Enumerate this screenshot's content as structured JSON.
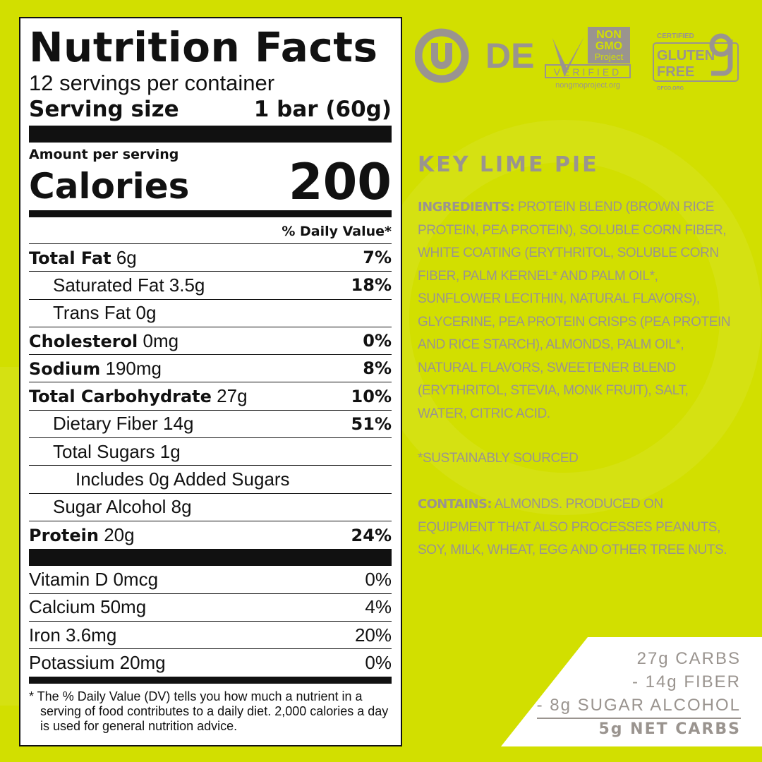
{
  "colors": {
    "background": "#d2df00",
    "text_gray": "#9a948f",
    "label_black": "#111111"
  },
  "label": {
    "title": "Nutrition Facts",
    "servings": "12 servings per container",
    "serving_size_label": "Serving size",
    "serving_size_value": "1 bar (60g)",
    "amount_per_serving": "Amount per serving",
    "calories_label": "Calories",
    "calories_value": "200",
    "dv_header": "% Daily Value*",
    "rows": [
      {
        "name": "Total Fat",
        "amount": "6g",
        "dv": "7%"
      },
      {
        "name": "Saturated Fat 3.5g",
        "dv": "18%"
      },
      {
        "name": "Trans Fat 0g",
        "dv": ""
      },
      {
        "name": "Cholesterol",
        "amount": "0mg",
        "dv": "0%"
      },
      {
        "name": "Sodium",
        "amount": "190mg",
        "dv": "8%"
      },
      {
        "name": "Total Carbohydrate",
        "amount": "27g",
        "dv": "10%"
      },
      {
        "name": "Dietary Fiber 14g",
        "dv": "51%"
      },
      {
        "name": "Total Sugars 1g",
        "dv": ""
      },
      {
        "name": "Includes 0g Added Sugars",
        "dv": ""
      },
      {
        "name": "Sugar Alcohol 8g",
        "dv": ""
      },
      {
        "name": "Protein",
        "amount": "20g",
        "dv": "24%"
      }
    ],
    "vitamins": [
      {
        "name": "Vitamin D 0mcg",
        "dv": "0%"
      },
      {
        "name": "Calcium 50mg",
        "dv": "4%"
      },
      {
        "name": "Iron 3.6mg",
        "dv": "20%"
      },
      {
        "name": "Potassium 20mg",
        "dv": "0%"
      }
    ],
    "footnote": "* The % Daily Value (DV) tells you how much a nutrient in a serving of food contributes to a daily diet. 2,000 calories a day is used for general nutrition advice."
  },
  "logos": {
    "kosher": "DE",
    "nongmo": [
      "NON",
      "GMO",
      "Project",
      "VERIFIED",
      "nongmoproject.org"
    ],
    "gluten": [
      "CERTIFIED",
      "GLUTEN",
      "FREE",
      "GFCO.ORG"
    ]
  },
  "flavor": "KEY LIME PIE",
  "ingredients_label": "INGREDIENTS:",
  "ingredients": " PROTEIN BLEND (BROWN RICE PROTEIN, PEA PROTEIN), SOLUBLE CORN FIBER, WHITE COATING (ERYTHRITOL, SOLUBLE CORN FIBER, PALM KERNEL* AND PALM OIL*, SUNFLOWER LECITHIN, NATURAL FLAVORS), GLYCERINE, PEA PROTEIN CRISPS (PEA PROTEIN AND RICE STARCH), ALMONDS, PALM OIL*, NATURAL FLAVORS, SWEETENER BLEND (ERYTHRITOL, STEVIA, MONK FRUIT), SALT, WATER, CITRIC ACID.",
  "sustainably": "*SUSTAINABLY SOURCED",
  "contains_label": "CONTAINS:",
  "contains": " ALMONDS. PRODUCED ON EQUIPMENT THAT ALSO PROCESSES PEANUTS, SOY, MILK, WHEAT, EGG AND OTHER TREE NUTS.",
  "net_carbs": {
    "line1": "27g CARBS",
    "line2": "- 14g FIBER",
    "line3": "- 8g SUGAR ALCOHOL",
    "total": "5g NET CARBS"
  }
}
